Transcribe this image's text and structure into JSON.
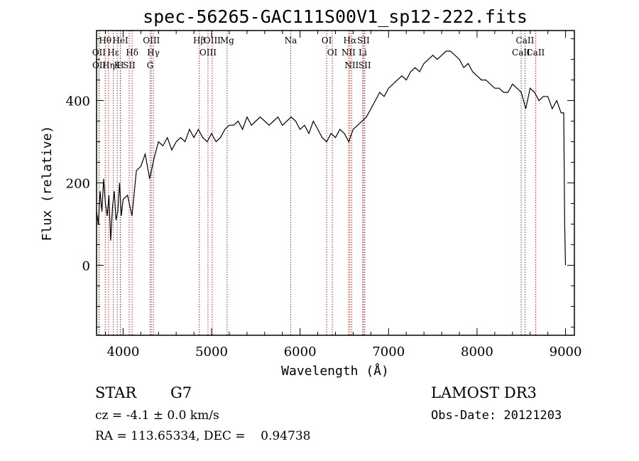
{
  "chart_data": {
    "type": "line",
    "title": "spec-56265-GAC111S00V1_sp12-222.fits",
    "xlabel": "Wavelength (Å)",
    "ylabel": "Flux (relative)",
    "xlim": [
      3700,
      9100
    ],
    "ylim": [
      -170,
      570
    ],
    "xticks": [
      4000,
      5000,
      6000,
      7000,
      8000,
      9000
    ],
    "yticks": [
      0,
      200,
      400
    ],
    "series": [
      {
        "name": "Flux",
        "x": [
          3700,
          3720,
          3740,
          3760,
          3780,
          3800,
          3820,
          3840,
          3860,
          3880,
          3900,
          3920,
          3940,
          3960,
          3980,
          4000,
          4050,
          4100,
          4150,
          4200,
          4250,
          4300,
          4350,
          4400,
          4450,
          4500,
          4550,
          4600,
          4650,
          4700,
          4750,
          4800,
          4850,
          4900,
          4950,
          5000,
          5050,
          5100,
          5150,
          5200,
          5250,
          5300,
          5350,
          5400,
          5450,
          5500,
          5550,
          5600,
          5650,
          5700,
          5750,
          5800,
          5850,
          5900,
          5950,
          6000,
          6050,
          6100,
          6150,
          6200,
          6250,
          6300,
          6350,
          6400,
          6450,
          6500,
          6550,
          6600,
          6650,
          6700,
          6750,
          6800,
          6850,
          6900,
          6950,
          7000,
          7050,
          7100,
          7150,
          7200,
          7250,
          7300,
          7350,
          7400,
          7450,
          7500,
          7550,
          7600,
          7650,
          7700,
          7750,
          7800,
          7850,
          7900,
          7950,
          8000,
          8050,
          8100,
          8150,
          8200,
          8250,
          8300,
          8350,
          8400,
          8450,
          8500,
          8550,
          8600,
          8650,
          8700,
          8750,
          8800,
          8850,
          8900,
          8950,
          8980,
          8990,
          9000
        ],
        "y": [
          130,
          100,
          180,
          130,
          210,
          150,
          120,
          170,
          60,
          140,
          180,
          110,
          130,
          200,
          120,
          160,
          170,
          120,
          230,
          240,
          270,
          210,
          260,
          300,
          290,
          310,
          280,
          300,
          310,
          300,
          330,
          310,
          330,
          310,
          300,
          320,
          300,
          310,
          330,
          340,
          340,
          350,
          330,
          360,
          340,
          350,
          360,
          350,
          340,
          350,
          360,
          340,
          350,
          360,
          350,
          330,
          340,
          320,
          350,
          330,
          310,
          300,
          320,
          310,
          330,
          320,
          300,
          330,
          340,
          350,
          360,
          380,
          400,
          420,
          410,
          430,
          440,
          450,
          460,
          450,
          470,
          480,
          470,
          490,
          500,
          510,
          500,
          510,
          520,
          520,
          510,
          500,
          480,
          490,
          470,
          460,
          450,
          450,
          440,
          430,
          430,
          420,
          420,
          440,
          430,
          420,
          380,
          430,
          420,
          400,
          410,
          410,
          380,
          400,
          370,
          370,
          100,
          0
        ]
      }
    ],
    "spectral_lines": [
      {
        "label": "Hθ",
        "wavelength": 3798
      },
      {
        "label": "OII",
        "wavelength": 3727
      },
      {
        "label": "OII",
        "wavelength": 3729
      },
      {
        "label": "Hε",
        "wavelength": 3889
      },
      {
        "label": "K",
        "wavelength": 3934
      },
      {
        "label": "HeI",
        "wavelength": 3970
      },
      {
        "label": "H",
        "wavelength": 3968
      },
      {
        "label": "Hη",
        "wavelength": 3835
      },
      {
        "label": "Hδ",
        "wavelength": 4102
      },
      {
        "label": "SII",
        "wavelength": 4069
      },
      {
        "label": "OIII",
        "wavelength": 4320
      },
      {
        "label": "Hγ",
        "wavelength": 4341
      },
      {
        "label": "G",
        "wavelength": 4305
      },
      {
        "label": "Hβ",
        "wavelength": 4861
      },
      {
        "label": "OIII",
        "wavelength": 5007
      },
      {
        "label": "OIII",
        "wavelength": 4959
      },
      {
        "label": "Mg",
        "wavelength": 5175
      },
      {
        "label": "Na",
        "wavelength": 5894
      },
      {
        "label": "OI",
        "wavelength": 6300
      },
      {
        "label": "OI",
        "wavelength": 6364
      },
      {
        "label": "Hα",
        "wavelength": 6563
      },
      {
        "label": "NII",
        "wavelength": 6548
      },
      {
        "label": "NII",
        "wavelength": 6583
      },
      {
        "label": "SII",
        "wavelength": 6716
      },
      {
        "label": "Li",
        "wavelength": 6708
      },
      {
        "label": "SII",
        "wavelength": 6731
      },
      {
        "label": "CaII",
        "wavelength": 8542
      },
      {
        "label": "CaII",
        "wavelength": 8498
      },
      {
        "label": "CaII",
        "wavelength": 8662
      }
    ]
  },
  "info": {
    "object_class": "STAR",
    "subclass": "G7",
    "survey": "LAMOST DR3",
    "redshift": "cz = -4.1 ± 0.0 km/s",
    "obs_date": "Obs-Date: 20121203",
    "coords": "RA = 113.65334, DEC =    0.94738"
  },
  "colors": {
    "line_marker": "#b22222",
    "spectrum": "#000000"
  }
}
